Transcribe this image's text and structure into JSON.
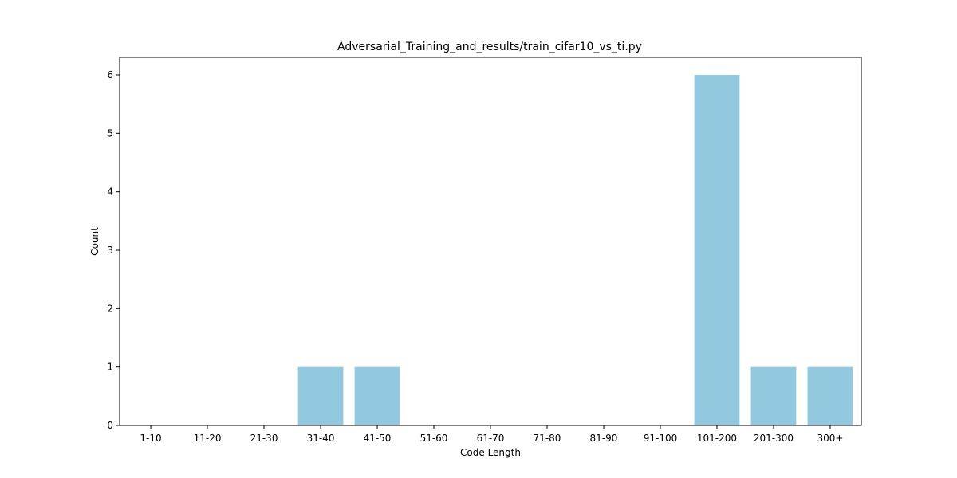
{
  "chart_data": {
    "type": "bar",
    "title": "Adversarial_Training_and_results/train_cifar10_vs_ti.py",
    "xlabel": "Code Length",
    "ylabel": "Count",
    "categories": [
      "1-10",
      "11-20",
      "21-30",
      "31-40",
      "41-50",
      "51-60",
      "61-70",
      "71-80",
      "81-90",
      "91-100",
      "101-200",
      "201-300",
      "300+"
    ],
    "values": [
      0,
      0,
      0,
      1,
      1,
      0,
      0,
      0,
      0,
      0,
      6,
      1,
      1
    ],
    "ylim": [
      0,
      6.3
    ],
    "yticks": [
      0,
      1,
      2,
      3,
      4,
      5,
      6
    ],
    "grid": false,
    "legend": "none",
    "bar_color": "#92c9de"
  }
}
